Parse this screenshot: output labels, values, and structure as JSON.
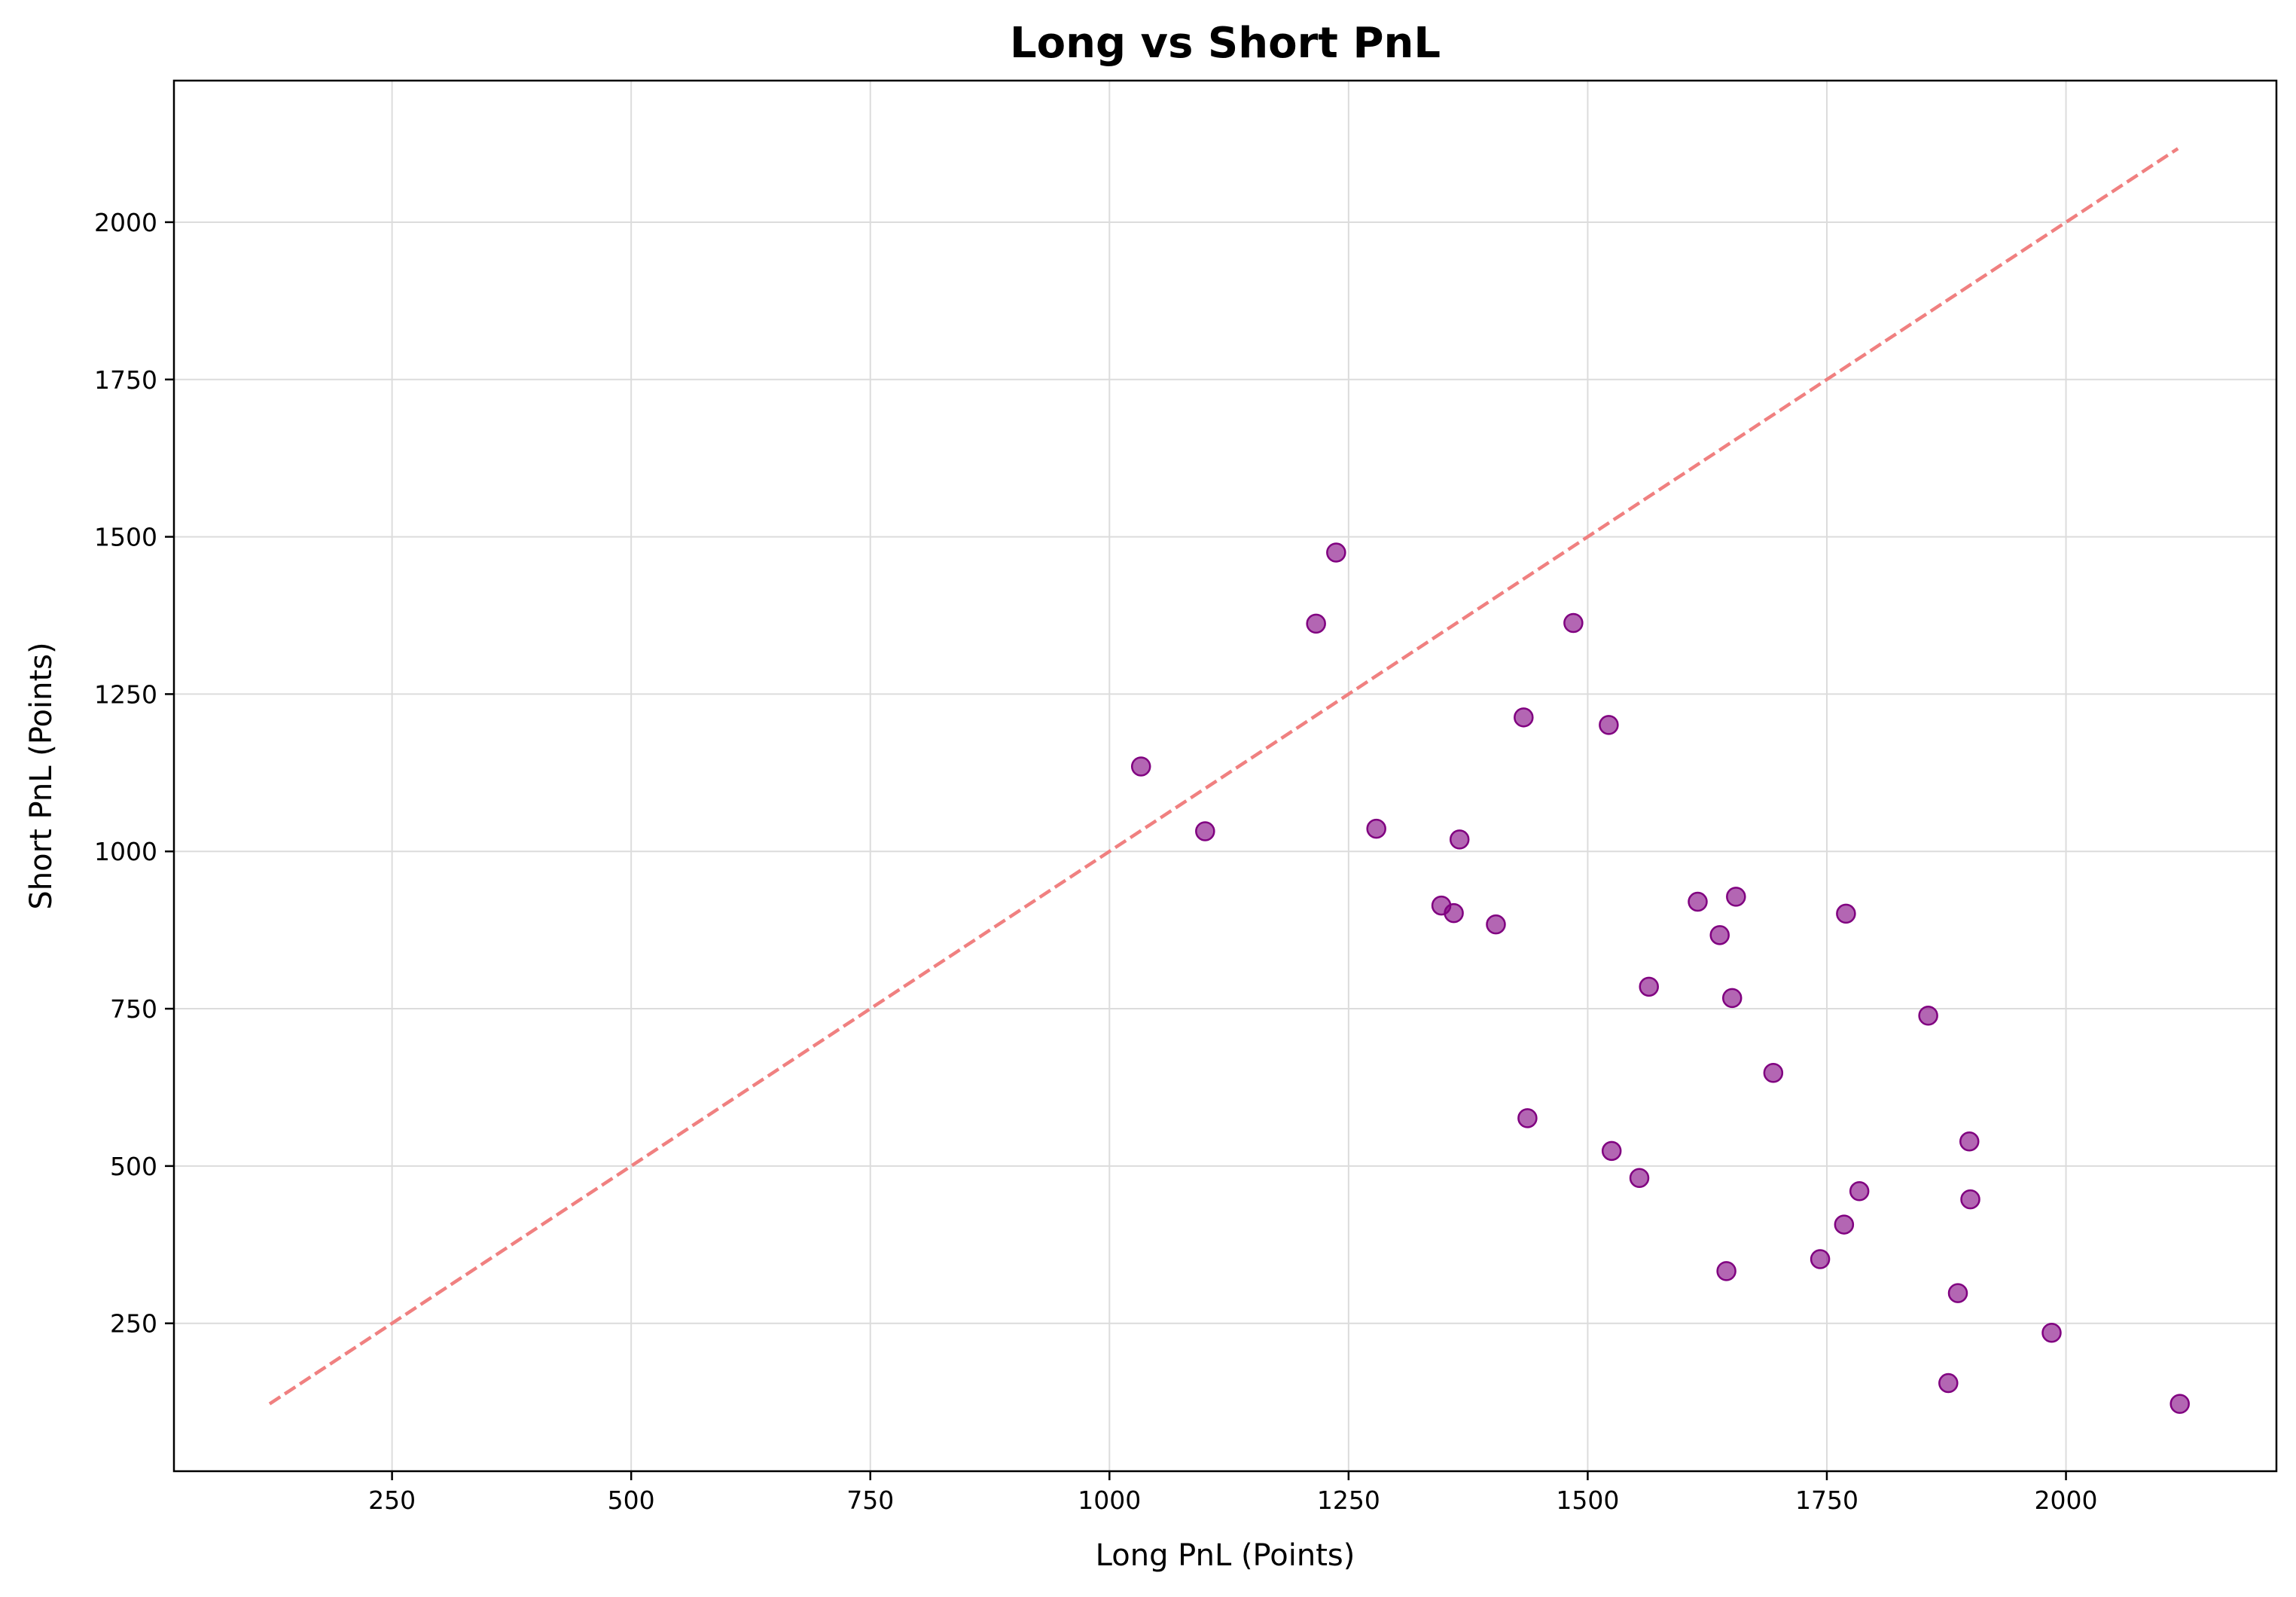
{
  "chart_data": {
    "type": "scatter",
    "title": "Long vs Short PnL",
    "xlabel": "Long PnL (Points)",
    "ylabel": "Short PnL (Points)",
    "xlim": [
      22,
      2220
    ],
    "ylim": [
      15,
      2225
    ],
    "xticks": [
      250,
      500,
      750,
      1000,
      1250,
      1500,
      1750,
      2000
    ],
    "yticks": [
      250,
      500,
      750,
      1000,
      1250,
      1500,
      1750,
      2000
    ],
    "grid": true,
    "colors": {
      "points": "#800080",
      "reference_line": "#f08080"
    },
    "reference_line": {
      "style": "dashed",
      "x": [
        122,
        2117
      ],
      "y": [
        122,
        2117
      ]
    },
    "points": [
      {
        "x": 1033,
        "y": 1135
      },
      {
        "x": 1100,
        "y": 1032
      },
      {
        "x": 1216,
        "y": 1362
      },
      {
        "x": 1237,
        "y": 1475
      },
      {
        "x": 1279,
        "y": 1036
      },
      {
        "x": 1347,
        "y": 914
      },
      {
        "x": 1360,
        "y": 902
      },
      {
        "x": 1366,
        "y": 1019
      },
      {
        "x": 1404,
        "y": 884
      },
      {
        "x": 1433,
        "y": 1213
      },
      {
        "x": 1437,
        "y": 576
      },
      {
        "x": 1485,
        "y": 1363
      },
      {
        "x": 1522,
        "y": 1201
      },
      {
        "x": 1525,
        "y": 524
      },
      {
        "x": 1554,
        "y": 481
      },
      {
        "x": 1564,
        "y": 785
      },
      {
        "x": 1615,
        "y": 920
      },
      {
        "x": 1638,
        "y": 867
      },
      {
        "x": 1645,
        "y": 333
      },
      {
        "x": 1651,
        "y": 767
      },
      {
        "x": 1655,
        "y": 928
      },
      {
        "x": 1694,
        "y": 648
      },
      {
        "x": 1743,
        "y": 352
      },
      {
        "x": 1768,
        "y": 407
      },
      {
        "x": 1770,
        "y": 901
      },
      {
        "x": 1784,
        "y": 460
      },
      {
        "x": 1856,
        "y": 739
      },
      {
        "x": 1877,
        "y": 155
      },
      {
        "x": 1887,
        "y": 298
      },
      {
        "x": 1899,
        "y": 539
      },
      {
        "x": 1900,
        "y": 447
      },
      {
        "x": 1985,
        "y": 235
      },
      {
        "x": 2119,
        "y": 122
      }
    ]
  }
}
